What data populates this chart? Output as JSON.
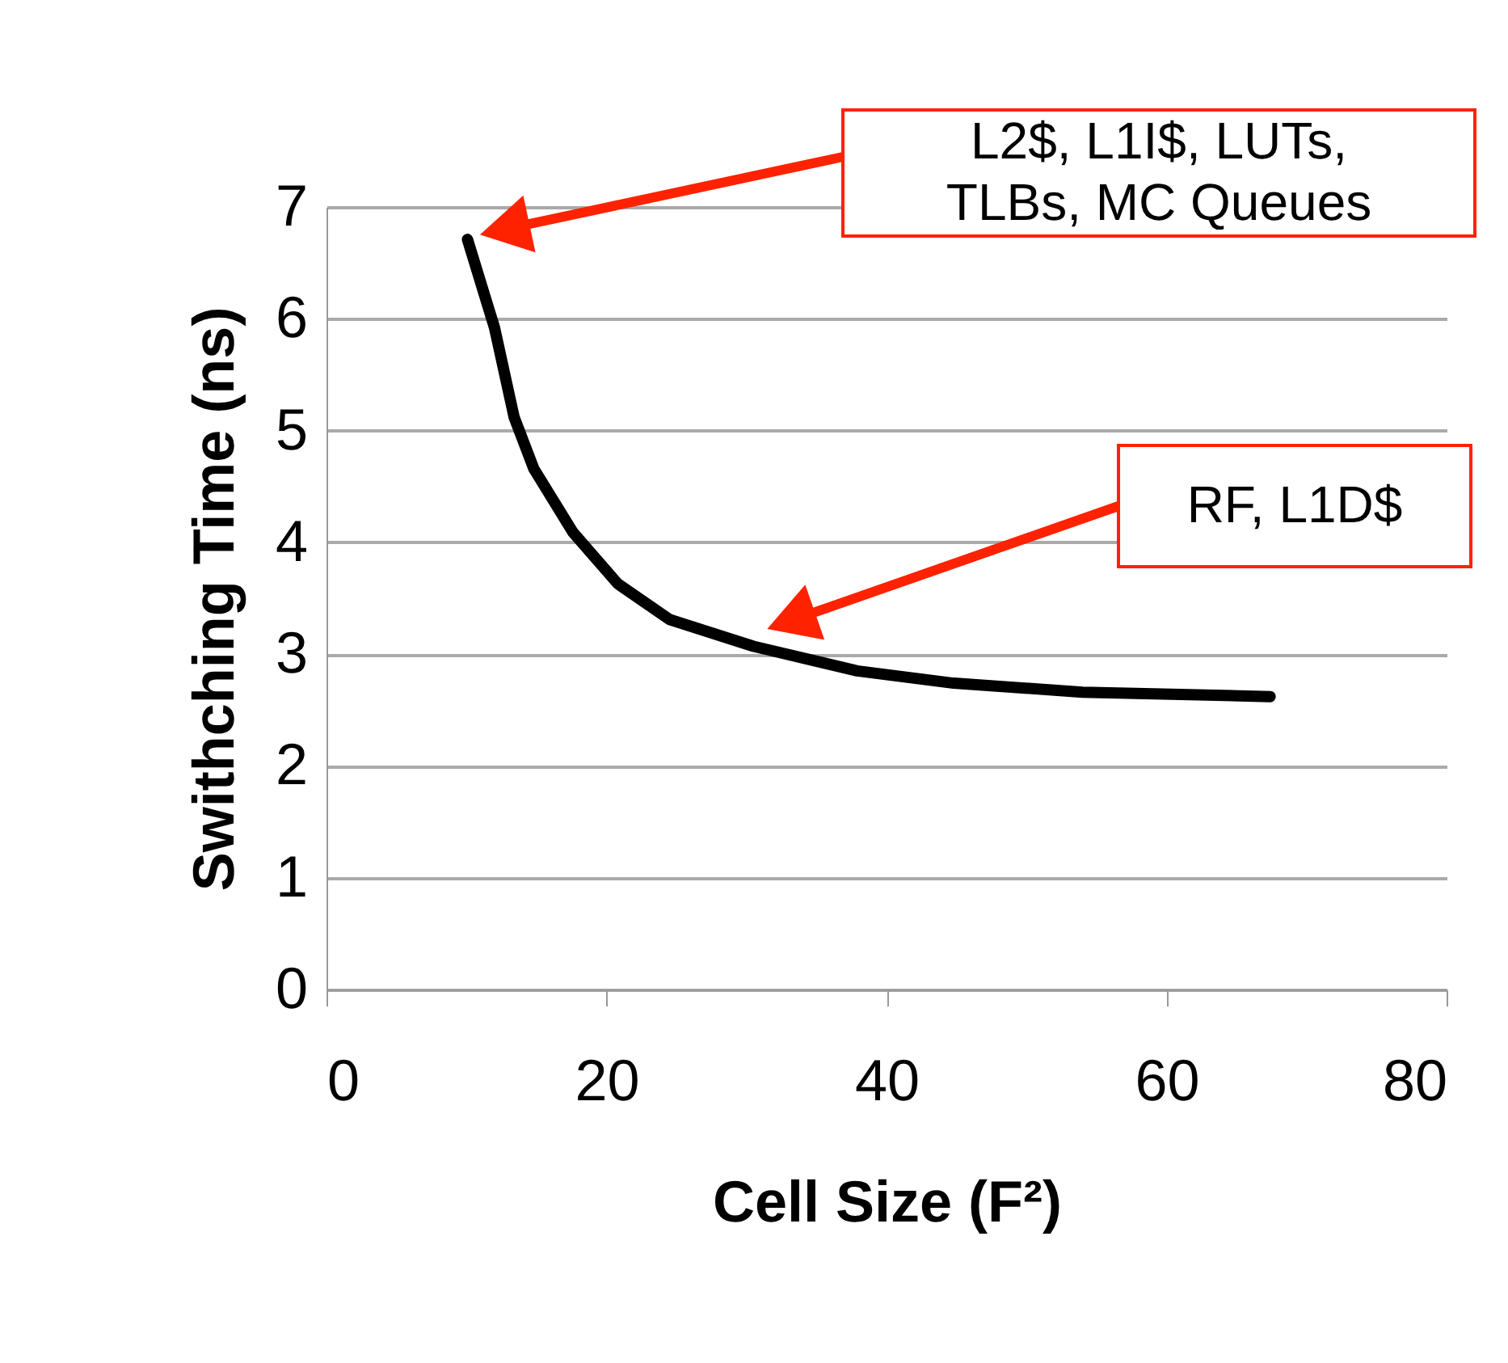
{
  "chart_data": {
    "type": "line",
    "xlabel": "Cell Size (F²)",
    "ylabel": "Swithching Time (ns)",
    "series": [
      {
        "color": "#000000",
        "x": [
          10.07,
          12.0,
          13.4,
          14.8,
          17.6,
          20.8,
          24.5,
          30.5,
          37.9,
          44.8,
          54.0,
          67.4
        ],
        "values": [
          6.71,
          5.92,
          5.12,
          4.66,
          4.09,
          3.63,
          3.31,
          3.07,
          2.85,
          2.74,
          2.66,
          2.62
        ]
      }
    ],
    "xlim": [
      0,
      80
    ],
    "xticks": [
      0,
      20,
      40,
      60,
      80
    ],
    "ylim": [
      0,
      7
    ],
    "yticks": [
      0,
      1,
      2,
      3,
      4,
      5,
      6,
      7
    ],
    "grid": "y",
    "line_style": "solid",
    "annotations": [
      "L2$, L1I$, LUTs,\nTLBs, MC Queues",
      "RF, L1D$"
    ]
  }
}
